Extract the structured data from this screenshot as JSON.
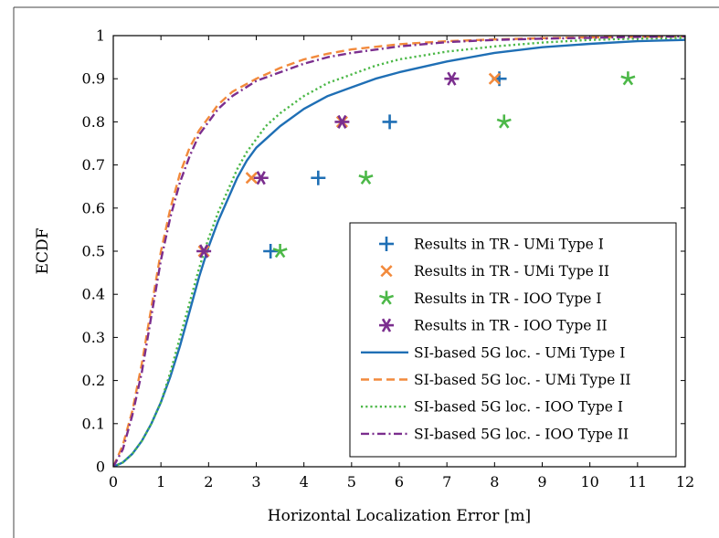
{
  "chart_data": {
    "type": "line",
    "xlabel": "Horizontal Localization Error [m]",
    "ylabel": "ECDF",
    "xlim": [
      0,
      12
    ],
    "ylim": [
      0,
      1
    ],
    "x_ticks": [
      "0",
      "1",
      "2",
      "3",
      "4",
      "5",
      "6",
      "7",
      "8",
      "9",
      "10",
      "11",
      "12"
    ],
    "y_ticks": [
      "0",
      "0.1",
      "0.2",
      "0.3",
      "0.4",
      "0.5",
      "0.6",
      "0.7",
      "0.8",
      "0.9",
      "1"
    ],
    "grid": false,
    "legend_position": "bottom-right",
    "scatter_series": [
      {
        "name": "Results in TR - UMi Type I",
        "marker": "plus",
        "color": "#1f6fb5",
        "points": [
          [
            3.3,
            0.5
          ],
          [
            4.3,
            0.67
          ],
          [
            5.8,
            0.8
          ],
          [
            8.1,
            0.9
          ]
        ]
      },
      {
        "name": "Results in TR - UMi Type II",
        "marker": "cross",
        "color": "#f28a3c",
        "points": [
          [
            1.9,
            0.5
          ],
          [
            2.9,
            0.67
          ],
          [
            4.8,
            0.8
          ],
          [
            8.0,
            0.9
          ]
        ]
      },
      {
        "name": "Results in TR - IOO Type I",
        "marker": "star",
        "color": "#4cb848",
        "points": [
          [
            3.5,
            0.5
          ],
          [
            5.3,
            0.67
          ],
          [
            8.2,
            0.8
          ],
          [
            10.8,
            0.9
          ]
        ]
      },
      {
        "name": "Results in TR - IOO Type II",
        "marker": "asterisk",
        "color": "#7b2e8e",
        "points": [
          [
            1.9,
            0.5
          ],
          [
            3.1,
            0.67
          ],
          [
            4.8,
            0.8
          ],
          [
            7.1,
            0.9
          ]
        ]
      }
    ],
    "line_series": [
      {
        "name": "SI-based 5G loc. - UMi Type I",
        "style": "solid",
        "color": "#1f6fb5",
        "x": [
          0,
          0.2,
          0.4,
          0.6,
          0.8,
          1.0,
          1.2,
          1.4,
          1.6,
          1.8,
          2.0,
          2.2,
          2.4,
          2.6,
          2.8,
          3.0,
          3.2,
          3.5,
          4.0,
          4.5,
          5.0,
          5.5,
          6.0,
          7.0,
          8.0,
          9.0,
          10.0,
          11.0,
          12.0
        ],
        "y": [
          0,
          0.01,
          0.03,
          0.06,
          0.1,
          0.15,
          0.21,
          0.28,
          0.36,
          0.44,
          0.51,
          0.57,
          0.62,
          0.67,
          0.71,
          0.74,
          0.76,
          0.79,
          0.83,
          0.86,
          0.88,
          0.9,
          0.915,
          0.94,
          0.96,
          0.973,
          0.981,
          0.987,
          0.99
        ]
      },
      {
        "name": "SI-based 5G loc. - UMi Type II",
        "style": "dashed",
        "color": "#f28a3c",
        "x": [
          0,
          0.2,
          0.4,
          0.6,
          0.8,
          1.0,
          1.2,
          1.4,
          1.6,
          1.8,
          2.0,
          2.2,
          2.5,
          3.0,
          3.5,
          4.0,
          4.5,
          5.0,
          6.0,
          7.0,
          8.0,
          9.0,
          10.0,
          11.0,
          12.0
        ],
        "y": [
          0,
          0.05,
          0.13,
          0.24,
          0.37,
          0.5,
          0.6,
          0.68,
          0.74,
          0.78,
          0.81,
          0.84,
          0.87,
          0.9,
          0.925,
          0.945,
          0.958,
          0.968,
          0.98,
          0.987,
          0.991,
          0.994,
          0.996,
          0.997,
          0.998
        ]
      },
      {
        "name": "SI-based 5G loc. - IOO Type I",
        "style": "dotted",
        "color": "#4cb848",
        "x": [
          0,
          0.2,
          0.4,
          0.6,
          0.8,
          1.0,
          1.2,
          1.4,
          1.6,
          1.8,
          2.0,
          2.2,
          2.4,
          2.6,
          2.8,
          3.0,
          3.2,
          3.5,
          4.0,
          4.5,
          5.0,
          5.5,
          6.0,
          7.0,
          8.0,
          9.0,
          10.0,
          11.0,
          12.0
        ],
        "y": [
          0,
          0.01,
          0.03,
          0.06,
          0.1,
          0.15,
          0.22,
          0.3,
          0.38,
          0.46,
          0.53,
          0.59,
          0.64,
          0.69,
          0.73,
          0.76,
          0.79,
          0.82,
          0.86,
          0.89,
          0.91,
          0.93,
          0.945,
          0.963,
          0.975,
          0.984,
          0.99,
          0.993,
          0.995
        ]
      },
      {
        "name": "SI-based 5G loc. - IOO Type II",
        "style": "dashdot",
        "color": "#7b2e8e",
        "x": [
          0,
          0.2,
          0.4,
          0.6,
          0.8,
          1.0,
          1.2,
          1.4,
          1.6,
          1.8,
          2.0,
          2.2,
          2.5,
          3.0,
          3.5,
          4.0,
          4.5,
          5.0,
          6.0,
          7.0,
          8.0,
          9.0,
          10.0,
          11.0,
          12.0
        ],
        "y": [
          0,
          0.04,
          0.12,
          0.22,
          0.35,
          0.48,
          0.58,
          0.66,
          0.72,
          0.77,
          0.8,
          0.83,
          0.86,
          0.895,
          0.915,
          0.935,
          0.95,
          0.96,
          0.975,
          0.985,
          0.99,
          0.993,
          0.995,
          0.997,
          0.998
        ]
      }
    ]
  }
}
